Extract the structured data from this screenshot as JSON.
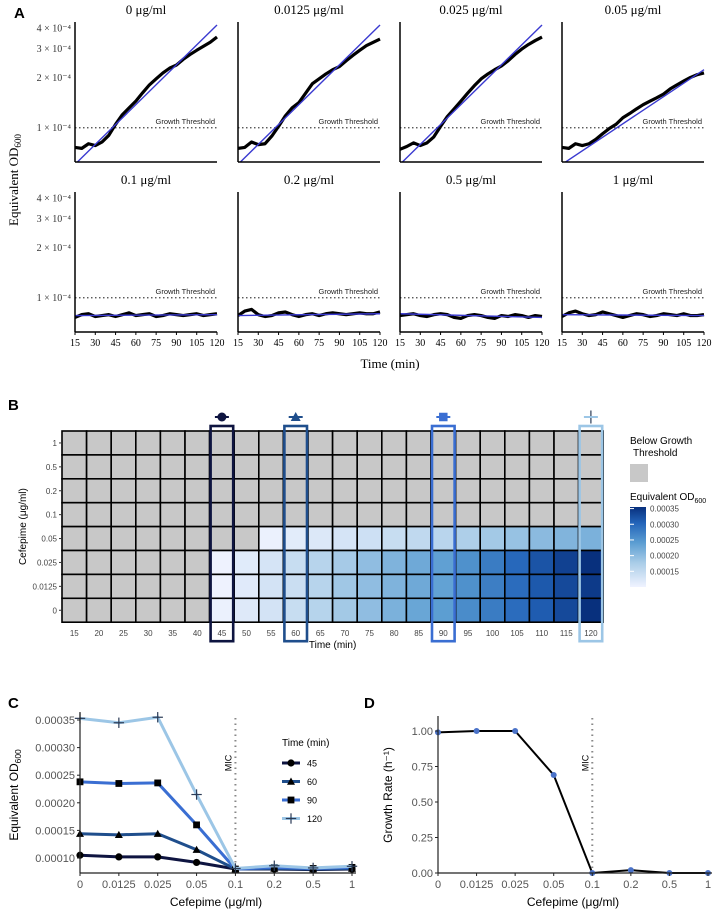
{
  "panel_labels": {
    "a": "A",
    "b": "B",
    "c": "C",
    "d": "D"
  },
  "colors": {
    "data_line": "#000000",
    "fit_line": "#3a3ad0",
    "below_threshold": "#c8c8c8",
    "t45": "#0e1440",
    "t60": "#1f4e8c",
    "t90": "#3a6ed2",
    "t120": "#9cc6e6",
    "growth_point": "#4a72c8"
  },
  "chart_data": [
    {
      "id": "A",
      "type": "line",
      "ylabel": {
        "text": "Equivalent OD",
        "sub": "600"
      },
      "xlabel": "Time (min)",
      "yscale": "log",
      "ylim": [
        6.2e-05,
        0.00042
      ],
      "xlim": [
        15,
        120
      ],
      "x_ticks": [
        "15",
        "30",
        "45",
        "60",
        "75",
        "90",
        "105",
        "120"
      ],
      "y_ticks": [
        {
          "value": 0.0004,
          "label": "4 × 10⁻⁴"
        },
        {
          "value": 0.0003,
          "label": "3 × 10⁻⁴"
        },
        {
          "value": 0.0002,
          "label": "2 × 10⁻⁴"
        },
        {
          "value": 0.0001,
          "label": "1 × 10⁻⁴"
        }
      ],
      "threshold": {
        "value": 0.0001,
        "label": "Growth Threshold"
      },
      "x": [
        15,
        20,
        25,
        30,
        35,
        40,
        45,
        50,
        55,
        60,
        65,
        70,
        75,
        80,
        85,
        90,
        95,
        100,
        105,
        110,
        115,
        120
      ],
      "panels": [
        {
          "title": "0 μg/ml",
          "data": [
            7.6e-05,
            7.5e-05,
            8e-05,
            7.8e-05,
            8.2e-05,
            9e-05,
            0.000105,
            0.00012,
            0.000132,
            0.000145,
            0.000163,
            0.000182,
            0.000198,
            0.000215,
            0.00023,
            0.00024,
            0.00026,
            0.000278,
            0.000295,
            0.000312,
            0.00033,
            0.000355
          ],
          "fit": [
            6e-05,
            0.00042
          ]
        },
        {
          "title": "0.0125 μg/ml",
          "data": [
            7.5e-05,
            7.6e-05,
            8.2e-05,
            7.9e-05,
            8e-05,
            8.9e-05,
            0.000102,
            0.000118,
            0.000132,
            0.000142,
            0.000162,
            0.000185,
            0.000198,
            0.000212,
            0.000225,
            0.000235,
            0.000255,
            0.000275,
            0.000295,
            0.000315,
            0.00033,
            0.000345
          ],
          "fit": [
            6e-05,
            0.00042
          ]
        },
        {
          "title": "0.025 μg/ml",
          "data": [
            7.4e-05,
            7.7e-05,
            8.1e-05,
            7.8e-05,
            8.1e-05,
            8.8e-05,
            0.000102,
            0.000117,
            0.00013,
            0.000145,
            0.000162,
            0.00018,
            0.000198,
            0.000212,
            0.000225,
            0.000237,
            0.000255,
            0.000278,
            0.0003,
            0.00032,
            0.000338,
            0.000355
          ],
          "fit": [
            6e-05,
            0.00042
          ]
        },
        {
          "title": "0.05 μg/ml",
          "data": [
            7.6e-05,
            7.5e-05,
            8e-05,
            7.8e-05,
            8e-05,
            8.5e-05,
            9.2e-05,
            9.9e-05,
            0.000105,
            0.000115,
            0.000122,
            0.00013,
            0.000138,
            0.000145,
            0.000152,
            0.00016,
            0.000172,
            0.000182,
            0.000192,
            0.000202,
            0.00021,
            0.000215
          ],
          "fit": [
            6e-05,
            0.000225
          ]
        },
        {
          "title": "0.1 μg/ml",
          "data": [
            7.6e-05,
            7.9e-05,
            8e-05,
            7.7e-05,
            7.8e-05,
            7.9e-05,
            7.7e-05,
            7.9e-05,
            8.1e-05,
            7.8e-05,
            7.9e-05,
            8e-05,
            7.7e-05,
            7.8e-05,
            8e-05,
            7.9e-05,
            7.8e-05,
            7.9e-05,
            8e-05,
            7.8e-05,
            7.9e-05,
            8e-05
          ],
          "fit": [
            7.8e-05,
            7.9e-05
          ]
        },
        {
          "title": "0.2 μg/ml",
          "data": [
            7.8e-05,
            8.3e-05,
            8.5e-05,
            7.9e-05,
            7.7e-05,
            7.8e-05,
            8.1e-05,
            8.2e-05,
            7.9e-05,
            7.7e-05,
            7.9e-05,
            8e-05,
            7.8e-05,
            8e-05,
            8.1e-05,
            8e-05,
            7.9e-05,
            8e-05,
            8.1e-05,
            8e-05,
            8e-05,
            8.2e-05
          ],
          "fit": [
            7.8e-05,
            8e-05
          ]
        },
        {
          "title": "0.5 μg/ml",
          "data": [
            7.8e-05,
            7.9e-05,
            8e-05,
            7.8e-05,
            7.7e-05,
            7.9e-05,
            8e-05,
            7.9e-05,
            7.6e-05,
            7.5e-05,
            7.8e-05,
            7.9e-05,
            7.8e-05,
            7.6e-05,
            7.5e-05,
            7.8e-05,
            7.7e-05,
            7.9e-05,
            7.8e-05,
            7.6e-05,
            7.8e-05,
            7.7e-05
          ],
          "fit": [
            8e-05,
            7.6e-05
          ]
        },
        {
          "title": "1 μg/ml",
          "data": [
            7.7e-05,
            8.1e-05,
            8.3e-05,
            8e-05,
            7.8e-05,
            7.9e-05,
            8.2e-05,
            8e-05,
            7.8e-05,
            7.6e-05,
            7.8e-05,
            8e-05,
            7.9e-05,
            7.7e-05,
            7.8e-05,
            8e-05,
            7.9e-05,
            7.8e-05,
            8e-05,
            7.8e-05,
            7.8e-05,
            7.9e-05
          ],
          "fit": [
            7.9e-05,
            7.8e-05
          ]
        }
      ]
    },
    {
      "id": "B",
      "type": "heatmap",
      "xlabel": "Time (min)",
      "ylabel": "Cefepime (μg/ml)",
      "x_categories": [
        "15",
        "20",
        "25",
        "30",
        "35",
        "40",
        "45",
        "50",
        "55",
        "60",
        "65",
        "70",
        "75",
        "80",
        "85",
        "90",
        "95",
        "100",
        "105",
        "110",
        "115",
        "120"
      ],
      "y_categories": [
        "1",
        "0.5",
        "0.2",
        "0.1",
        "0.05",
        "0.025",
        "0.0125",
        "0"
      ],
      "highlight_times": [
        "45",
        "60",
        "90",
        "120"
      ],
      "legend_gray": "Below Growth Threshold",
      "legend_scale_title": {
        "text": "Equivalent OD",
        "sub": "600"
      },
      "colorbar_ticks": [
        "0.00035",
        "0.00030",
        "0.00025",
        "0.00020",
        "0.00015"
      ],
      "color_range": [
        0.0001,
        0.000355
      ],
      "note": "null = below growth threshold",
      "rows": {
        "0.05": [
          null,
          null,
          null,
          null,
          null,
          null,
          null,
          null,
          0.000105,
          0.000115,
          0.000122,
          0.00013,
          0.000138,
          0.000145,
          0.000152,
          0.00016,
          0.000172,
          0.000182,
          0.000192,
          0.000202,
          0.00021,
          0.000215
        ],
        "0.025": [
          null,
          null,
          null,
          null,
          null,
          null,
          0.000102,
          0.000117,
          0.00013,
          0.000145,
          0.000162,
          0.00018,
          0.000198,
          0.000212,
          0.000225,
          0.000237,
          0.000255,
          0.000278,
          0.0003,
          0.00032,
          0.000338,
          0.000355
        ],
        "0.0125": [
          null,
          null,
          null,
          null,
          null,
          null,
          0.000102,
          0.000118,
          0.000132,
          0.000142,
          0.000162,
          0.000185,
          0.000198,
          0.000212,
          0.000225,
          0.000235,
          0.000255,
          0.000275,
          0.000295,
          0.000315,
          0.00033,
          0.000345
        ],
        "0": [
          null,
          null,
          null,
          null,
          null,
          null,
          0.000105,
          0.00012,
          0.000132,
          0.000145,
          0.000163,
          0.000182,
          0.000198,
          0.000215,
          0.00023,
          0.00024,
          0.00026,
          0.000278,
          0.000295,
          0.000312,
          0.00033,
          0.000355
        ]
      }
    },
    {
      "id": "C",
      "type": "line",
      "xlabel": "Cefepime (μg/ml)",
      "ylabel": {
        "text": "Equivalent OD",
        "sub": "600"
      },
      "categories": [
        "0",
        "0.0125",
        "0.025",
        "0.05",
        "0.1",
        "0.2",
        "0.5",
        "1"
      ],
      "ylim": [
        7.5e-05,
        0.00036
      ],
      "y_ticks": [
        "0.00035",
        "0.00030",
        "0.00025",
        "0.00020",
        "0.00015",
        "0.00010"
      ],
      "legend_title": "Time (min)",
      "mic_label": "MIC",
      "mic_at": "0.1",
      "series": [
        {
          "name": "45",
          "marker": "circle",
          "values": [
            0.000105,
            0.000102,
            0.000102,
            9.2e-05,
            8e-05,
            8e-05,
            7.9e-05,
            8e-05
          ]
        },
        {
          "name": "60",
          "marker": "triangle",
          "values": [
            0.000144,
            0.000142,
            0.000144,
            0.000115,
            8e-05,
            8.1e-05,
            8e-05,
            8.1e-05
          ]
        },
        {
          "name": "90",
          "marker": "square",
          "values": [
            0.000238,
            0.000235,
            0.000236,
            0.00016,
            8e-05,
            8.3e-05,
            8.1e-05,
            8.3e-05
          ]
        },
        {
          "name": "120",
          "marker": "plus",
          "values": [
            0.000353,
            0.000345,
            0.000355,
            0.000215,
            8.1e-05,
            8.6e-05,
            8.2e-05,
            8.5e-05
          ]
        }
      ]
    },
    {
      "id": "D",
      "type": "line",
      "xlabel": "Cefepime (μg/ml)",
      "ylabel": "Growth Rate (h⁻¹)",
      "categories": [
        "0",
        "0.0125",
        "0.025",
        "0.05",
        "0.1",
        "0.2",
        "0.5",
        "1"
      ],
      "ylim": [
        0,
        1.05
      ],
      "y_ticks": [
        "1.00",
        "0.75",
        "0.50",
        "0.25",
        "0.00"
      ],
      "mic_label": "MIC",
      "mic_at": "0.1",
      "values": [
        0.99,
        1.0,
        1.0,
        0.69,
        0.0,
        0.02,
        0.0,
        0.0
      ]
    }
  ]
}
